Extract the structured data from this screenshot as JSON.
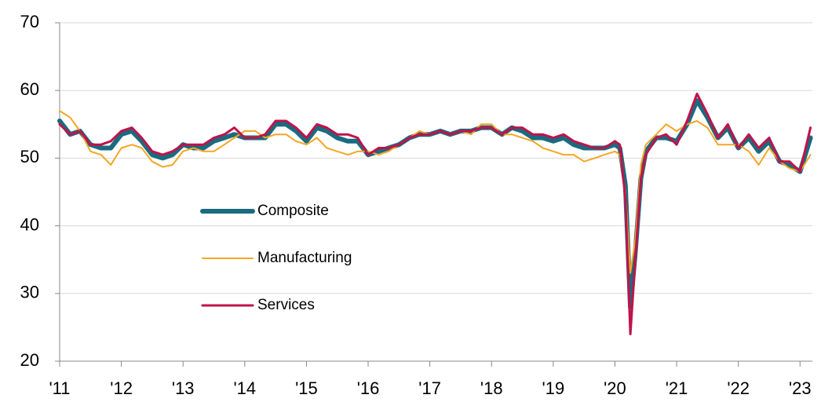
{
  "chart_data": {
    "type": "line",
    "x": [
      2011.0,
      2011.17,
      2011.33,
      2011.5,
      2011.67,
      2011.83,
      2012.0,
      2012.17,
      2012.33,
      2012.5,
      2012.67,
      2012.83,
      2013.0,
      2013.17,
      2013.33,
      2013.5,
      2013.67,
      2013.83,
      2014.0,
      2014.17,
      2014.33,
      2014.5,
      2014.67,
      2014.83,
      2015.0,
      2015.17,
      2015.33,
      2015.5,
      2015.67,
      2015.83,
      2016.0,
      2016.17,
      2016.33,
      2016.5,
      2016.67,
      2016.83,
      2017.0,
      2017.17,
      2017.33,
      2017.5,
      2017.67,
      2017.83,
      2018.0,
      2018.17,
      2018.33,
      2018.5,
      2018.67,
      2018.83,
      2019.0,
      2019.17,
      2019.33,
      2019.5,
      2019.67,
      2019.83,
      2020.0,
      2020.08,
      2020.17,
      2020.25,
      2020.33,
      2020.42,
      2020.5,
      2020.67,
      2020.83,
      2021.0,
      2021.17,
      2021.33,
      2021.5,
      2021.67,
      2021.83,
      2022.0,
      2022.17,
      2022.33,
      2022.5,
      2022.67,
      2022.83,
      2023.0,
      2023.17
    ],
    "series": [
      {
        "name": "Composite",
        "color": "#1a6b80",
        "width": 6,
        "values": [
          55.5,
          53.5,
          54,
          52,
          51.5,
          51.5,
          53.5,
          54,
          52.5,
          50.5,
          50,
          50.5,
          52,
          51.5,
          51.5,
          52.5,
          53,
          53.5,
          53,
          53,
          53,
          55,
          55,
          54,
          52.5,
          54.5,
          54,
          53,
          52.5,
          52.5,
          50.5,
          51,
          51.5,
          52,
          53,
          53.5,
          53.5,
          54,
          53.5,
          54,
          54,
          54.5,
          54.5,
          53.5,
          54.5,
          54,
          53,
          53,
          52.5,
          53,
          52,
          51.5,
          51.5,
          51.5,
          52,
          51.5,
          46,
          28,
          36,
          47,
          51,
          53,
          53,
          52.5,
          55,
          58.5,
          56,
          53,
          54.5,
          51.5,
          53,
          51,
          52.5,
          49.5,
          49,
          48,
          53
        ]
      },
      {
        "name": "Manufacturing",
        "color": "#f5a623",
        "width": 2,
        "values": [
          57,
          56,
          54,
          51,
          50.5,
          49,
          51.5,
          52,
          51.5,
          49.5,
          48.7,
          49,
          51,
          51.5,
          51,
          51,
          52,
          53,
          54,
          54,
          53,
          53.5,
          53.5,
          52.5,
          52,
          53,
          51.5,
          51,
          50.5,
          51,
          51,
          50.5,
          51,
          52,
          53,
          54,
          53.5,
          54,
          53.5,
          54,
          53.5,
          55,
          55,
          53.5,
          53.5,
          53,
          52.5,
          51.5,
          51,
          50.5,
          50.5,
          49.5,
          50,
          50.5,
          51,
          50.5,
          45,
          33,
          38,
          49,
          52,
          53.5,
          55,
          54,
          55,
          55.5,
          54.5,
          52,
          52,
          52,
          51,
          49,
          51.5,
          49.5,
          48.5,
          48,
          50.5
        ]
      },
      {
        "name": "Services",
        "color": "#c0134a",
        "width": 3,
        "values": [
          55,
          53.5,
          54,
          52,
          52,
          52.5,
          54,
          54.5,
          53,
          51,
          50.5,
          51,
          52,
          52,
          52,
          53,
          53.5,
          54.5,
          53,
          53,
          53.5,
          55.5,
          55.5,
          54.5,
          53,
          55,
          54.5,
          53.5,
          53.5,
          53,
          50.5,
          51.5,
          51.5,
          52,
          53,
          53.5,
          53.5,
          54,
          53.5,
          54,
          54,
          54.5,
          54.5,
          53.5,
          54.5,
          54.5,
          53.5,
          53.5,
          53,
          53.5,
          52.5,
          52,
          51.5,
          51.5,
          52.5,
          52,
          44,
          24,
          35,
          47,
          50.5,
          53,
          53.5,
          52,
          55.5,
          59.5,
          56.5,
          53,
          55,
          51.5,
          53.5,
          51.5,
          53,
          49.5,
          49.5,
          48,
          54.5
        ]
      }
    ],
    "xlim": [
      2011,
      2023.2
    ],
    "xticks": [
      {
        "value": 2011,
        "label": "'11"
      },
      {
        "value": 2012,
        "label": "'12"
      },
      {
        "value": 2013,
        "label": "'13"
      },
      {
        "value": 2014,
        "label": "'14"
      },
      {
        "value": 2015,
        "label": "'15"
      },
      {
        "value": 2016,
        "label": "'16"
      },
      {
        "value": 2017,
        "label": "'17"
      },
      {
        "value": 2018,
        "label": "'18"
      },
      {
        "value": 2019,
        "label": "'19"
      },
      {
        "value": 2020,
        "label": "'20"
      },
      {
        "value": 2021,
        "label": "'21"
      },
      {
        "value": 2022,
        "label": "'22"
      },
      {
        "value": 2023,
        "label": "'23"
      }
    ],
    "ylim": [
      20,
      70
    ],
    "yticks": [
      20,
      30,
      40,
      50,
      60,
      70
    ],
    "grid": true,
    "legend": "center-left"
  }
}
